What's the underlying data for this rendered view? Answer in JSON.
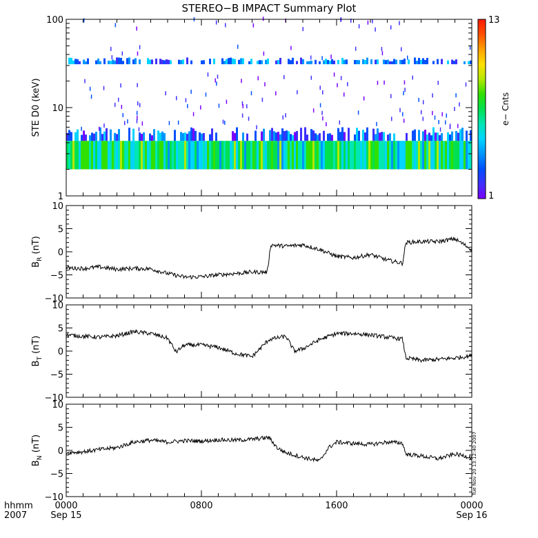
{
  "title": "STEREO−B IMPACT Summary Plot",
  "time_axis": {
    "corner_label_top": "hhmm",
    "corner_label_bottom": "2007",
    "ticks": [
      {
        "hhmm": "0000",
        "date": "Sep 15",
        "hour": 0
      },
      {
        "hhmm": "0800",
        "date": "",
        "hour": 8
      },
      {
        "hhmm": "1600",
        "date": "",
        "hour": 16
      },
      {
        "hhmm": "0000",
        "date": "Sep 16",
        "hour": 24
      }
    ],
    "range_hours": [
      0,
      24
    ]
  },
  "colorbar": {
    "label": "e− Cnts",
    "max_label": "13",
    "min_label": "1",
    "range": [
      1,
      13
    ],
    "colors": [
      "#7a00ff",
      "#3f30ff",
      "#0050ff",
      "#0096ff",
      "#00d4ff",
      "#00e6b4",
      "#00e050",
      "#30e000",
      "#b4e800",
      "#ffe000",
      "#ffa000",
      "#ff5000",
      "#ff1a00"
    ]
  },
  "timestamp": "Tue Nov 20 13:12:40 2007",
  "chart_data": [
    {
      "type": "heatmap",
      "ylabel": "STE D0 (keV)",
      "yscale": "log",
      "ylim": [
        1,
        100
      ],
      "yticks": [
        "1",
        "10",
        "100"
      ],
      "bands": [
        {
          "energy_low_keV": 2.0,
          "energy_high_keV": 4.2,
          "counts_range": [
            4,
            9
          ],
          "dominant_count": 6
        },
        {
          "energy_low_keV": 4.2,
          "energy_high_keV": 6.0,
          "counts_range": [
            1,
            5
          ],
          "dominant_count": 2
        },
        {
          "energy_low_keV": 31.0,
          "energy_high_keV": 37.0,
          "counts_range": [
            2,
            5
          ],
          "dominant_count": 4
        }
      ],
      "sparse_hits_keV": [
        7,
        8,
        10,
        12,
        15,
        18,
        22,
        45,
        95
      ],
      "sparse_hits_count": 1
    },
    {
      "type": "line",
      "ylabel_main": "B",
      "ylabel_sub": "R",
      "ylabel_unit": "(nT)",
      "ylim": [
        -10,
        10
      ],
      "yticks": [
        "10",
        "5",
        "0",
        "−5",
        "−10"
      ],
      "x_hours": [
        0,
        1,
        2,
        3,
        4,
        5,
        6,
        7,
        8,
        9,
        10,
        11,
        11.9,
        12.1,
        13,
        14,
        15,
        16,
        17,
        18,
        19,
        19.9,
        20.1,
        21,
        22,
        23,
        24
      ],
      "y_nT": [
        -3.5,
        -3.6,
        -3.3,
        -3.8,
        -3.6,
        -3.7,
        -4.7,
        -5.5,
        -5.4,
        -5.0,
        -4.7,
        -4.4,
        -4.4,
        1.5,
        1.2,
        1.5,
        0.5,
        -1.0,
        -1.3,
        -0.6,
        -1.8,
        -2.5,
        2.0,
        2.2,
        2.2,
        2.8,
        0.5
      ]
    },
    {
      "type": "line",
      "ylabel_main": "B",
      "ylabel_sub": "T",
      "ylabel_unit": "(nT)",
      "ylim": [
        -10,
        10
      ],
      "yticks": [
        "10",
        "5",
        "0",
        "−5",
        "−10"
      ],
      "x_hours": [
        0,
        1,
        2,
        3,
        4,
        5,
        6,
        6.5,
        7,
        8,
        9,
        10,
        11,
        12,
        13,
        13.5,
        14,
        15,
        16,
        17,
        18,
        19,
        19.9,
        20.1,
        21,
        22,
        23,
        24
      ],
      "y_nT": [
        3.5,
        3.2,
        3.0,
        3.3,
        4.2,
        3.8,
        2.8,
        -0.2,
        1.3,
        1.3,
        0.8,
        -0.5,
        -1.2,
        2.5,
        3.2,
        0.0,
        0.5,
        2.5,
        3.8,
        3.8,
        3.5,
        3.0,
        2.6,
        -1.5,
        -2.0,
        -1.8,
        -1.5,
        -1.0
      ]
    },
    {
      "type": "line",
      "ylabel_main": "B",
      "ylabel_sub": "N",
      "ylabel_unit": "(nT)",
      "ylim": [
        -10,
        10
      ],
      "yticks": [
        "10",
        "5",
        "0",
        "−5",
        "−10"
      ],
      "x_hours": [
        0,
        1,
        2,
        3,
        4,
        5,
        6,
        7,
        8,
        9,
        10,
        11,
        12,
        12.5,
        13,
        14,
        15,
        15.5,
        16,
        17,
        18,
        19,
        19.9,
        20.1,
        21,
        22,
        23,
        24
      ],
      "y_nT": [
        -0.5,
        -0.3,
        0.2,
        0.6,
        1.8,
        2.2,
        1.8,
        2.1,
        2.0,
        2.3,
        2.2,
        2.4,
        2.8,
        0.5,
        -0.5,
        -1.5,
        -2.3,
        0.5,
        1.8,
        1.5,
        1.3,
        1.8,
        1.6,
        -0.8,
        -1.2,
        -1.8,
        -0.8,
        -1.5
      ]
    }
  ]
}
